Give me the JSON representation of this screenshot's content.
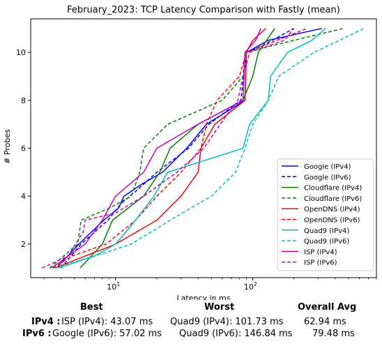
{
  "chart_data": {
    "type": "line",
    "title": "February_2023: TCP Latency Comparison with Fastly (mean)",
    "xlabel": "Latency in ms",
    "ylabel": "# Probes",
    "xscale": "log",
    "xlim": [
      2.4,
      800
    ],
    "ylim": [
      0.6,
      11.4
    ],
    "x_tick_labels": [
      {
        "value": 10,
        "base": "10",
        "exp": "1"
      },
      {
        "value": 100,
        "base": "10",
        "exp": "2"
      }
    ],
    "y_ticks": [
      2,
      4,
      6,
      8,
      10
    ],
    "legend_position": "lower-right",
    "series": [
      {
        "name": "Google (IPv4)",
        "color": "#0000ff",
        "dash": "solid",
        "points": [
          [
            3.7,
            1
          ],
          [
            5.4,
            2
          ],
          [
            8.2,
            3
          ],
          [
            10.5,
            3.5
          ],
          [
            11.5,
            4
          ],
          [
            15.5,
            4.5
          ],
          [
            22,
            5
          ],
          [
            33,
            6
          ],
          [
            46,
            7
          ],
          [
            88,
            8
          ],
          [
            90,
            10
          ],
          [
            130,
            10.5
          ],
          [
            320,
            11
          ]
        ]
      },
      {
        "name": "Google (IPv6)",
        "color": "#0000ff",
        "dash": "dashed",
        "points": [
          [
            4.0,
            1
          ],
          [
            5.6,
            2
          ],
          [
            8.8,
            3
          ],
          [
            11,
            3.7
          ],
          [
            14,
            4.2
          ],
          [
            20,
            5
          ],
          [
            34,
            6
          ],
          [
            48,
            7
          ],
          [
            82,
            8
          ],
          [
            90,
            10
          ],
          [
            120,
            10.3
          ],
          [
            200,
            11
          ]
        ]
      },
      {
        "name": "Cloudflare (IPv4)",
        "color": "#008000",
        "dash": "solid",
        "points": [
          [
            5.5,
            1
          ],
          [
            8,
            2
          ],
          [
            9.5,
            3
          ],
          [
            16,
            4
          ],
          [
            21,
            5
          ],
          [
            25,
            6
          ],
          [
            40,
            7
          ],
          [
            85,
            8
          ],
          [
            100,
            9
          ],
          [
            110,
            10
          ],
          [
            145,
            11
          ]
        ]
      },
      {
        "name": "Cloudflare (IPv6)",
        "color": "#008000",
        "dash": "dashed",
        "points": [
          [
            3.3,
            1
          ],
          [
            5.3,
            2
          ],
          [
            5.6,
            3
          ],
          [
            9,
            3.5
          ],
          [
            13,
            4
          ],
          [
            15,
            5
          ],
          [
            16,
            6
          ],
          [
            24,
            7
          ],
          [
            60,
            8
          ],
          [
            85,
            9
          ],
          [
            88,
            10
          ],
          [
            200,
            10.5
          ],
          [
            460,
            11
          ]
        ]
      },
      {
        "name": "OpenDNS (IPv4)",
        "color": "#ff0000",
        "dash": "solid",
        "points": [
          [
            3.6,
            1
          ],
          [
            6,
            1.5
          ],
          [
            10,
            2
          ],
          [
            20,
            3
          ],
          [
            30,
            4
          ],
          [
            40,
            5
          ],
          [
            42,
            6
          ],
          [
            53,
            7
          ],
          [
            88,
            8
          ],
          [
            90,
            10
          ],
          [
            100,
            10.5
          ],
          [
            125,
            11
          ]
        ]
      },
      {
        "name": "OpenDNS (IPv6)",
        "color": "#ff0000",
        "dash": "dashed",
        "points": [
          [
            3.5,
            1
          ],
          [
            4.8,
            1.5
          ],
          [
            8.5,
            2
          ],
          [
            14,
            3
          ],
          [
            20,
            4
          ],
          [
            30,
            5
          ],
          [
            42,
            6
          ],
          [
            46,
            7
          ],
          [
            55,
            8
          ],
          [
            80,
            9
          ],
          [
            90,
            10
          ],
          [
            150,
            10.5
          ],
          [
            250,
            11
          ]
        ]
      },
      {
        "name": "Quad9 (IPv4)",
        "color": "#00bfbf",
        "dash": "solid",
        "points": [
          [
            3.8,
            1
          ],
          [
            7,
            1.5
          ],
          [
            10,
            2
          ],
          [
            14,
            3
          ],
          [
            19,
            4
          ],
          [
            24,
            5
          ],
          [
            85,
            6
          ],
          [
            95,
            7
          ],
          [
            130,
            8
          ],
          [
            135,
            9
          ],
          [
            180,
            10
          ],
          [
            270,
            10.5
          ],
          [
            340,
            11
          ]
        ]
      },
      {
        "name": "Quad9 (IPv6)",
        "color": "#00bfbf",
        "dash": "dashed",
        "points": [
          [
            3.6,
            1
          ],
          [
            7,
            1.5
          ],
          [
            13,
            2
          ],
          [
            25,
            3
          ],
          [
            50,
            4
          ],
          [
            75,
            5
          ],
          [
            88,
            6
          ],
          [
            100,
            7
          ],
          [
            130,
            8
          ],
          [
            155,
            9
          ],
          [
            280,
            10
          ],
          [
            430,
            10.5
          ],
          [
            650,
            11
          ]
        ]
      },
      {
        "name": "ISP (IPv4)",
        "color": "#bf00bf",
        "dash": "solid",
        "points": [
          [
            3.4,
            1
          ],
          [
            6,
            2
          ],
          [
            8,
            3
          ],
          [
            10,
            4
          ],
          [
            16,
            5
          ],
          [
            20,
            6
          ],
          [
            40,
            7
          ],
          [
            85,
            8
          ],
          [
            88,
            10
          ],
          [
            105,
            10.5
          ],
          [
            115,
            11
          ]
        ]
      },
      {
        "name": "ISP (IPv6)",
        "color": "#bf00bf",
        "dash": "dashed",
        "points": [
          [
            2.9,
            1
          ],
          [
            4.5,
            1.5
          ],
          [
            5.8,
            2.5
          ],
          [
            6,
            3
          ],
          [
            10,
            3.3
          ],
          [
            16,
            4
          ],
          [
            28,
            5
          ],
          [
            44,
            6
          ],
          [
            58,
            7
          ],
          [
            78,
            8
          ],
          [
            85,
            9
          ],
          [
            95,
            10
          ],
          [
            170,
            10.5
          ],
          [
            200,
            11
          ]
        ]
      }
    ]
  },
  "summary": {
    "headers": {
      "best": "Best",
      "worst": "Worst",
      "avg": "Overall Avg"
    },
    "rows": [
      {
        "label": "IPv4 :",
        "best": "ISP (IPv4): 43.07 ms",
        "worst": "Quad9 (IPv4): 101.73 ms",
        "avg": "62.94 ms"
      },
      {
        "label": "IPv6 :",
        "best": "Google (IPv6): 57.02 ms",
        "worst": "Quad9 (IPv6): 146.84 ms",
        "avg": "79.48 ms"
      }
    ]
  }
}
